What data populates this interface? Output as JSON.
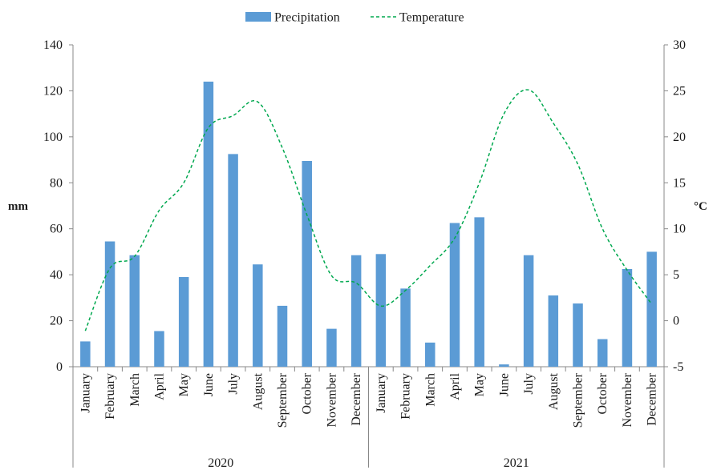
{
  "chart_data": {
    "type": "bar",
    "legend": {
      "placement": "top-center",
      "items": [
        {
          "label": "Precipitation",
          "marker": "bar"
        },
        {
          "label": "Temperature",
          "marker": "dashed-line"
        }
      ]
    },
    "y_left_label": "mm",
    "y_right_label": "°C",
    "y_left_range": [
      0,
      140
    ],
    "y_left_ticks": [
      "0",
      "20",
      "40",
      "60",
      "80",
      "100",
      "120",
      "140"
    ],
    "y_right_range": [
      -5,
      30
    ],
    "y_right_ticks": [
      "-5",
      "0",
      "5",
      "10",
      "15",
      "20",
      "25",
      "30"
    ],
    "grid": false,
    "groups": [
      {
        "label": "2020",
        "categories": [
          "January",
          "February",
          "March",
          "April",
          "May",
          "June",
          "July",
          "August",
          "September",
          "October",
          "November",
          "December"
        ]
      },
      {
        "label": "2021",
        "categories": [
          "January",
          "February",
          "March",
          "April",
          "May",
          "June",
          "July",
          "August",
          "September",
          "October",
          "November",
          "December"
        ]
      }
    ],
    "series": [
      {
        "name": "Precipitation",
        "type": "bar",
        "axis": "left",
        "values": [
          11,
          54.5,
          48.5,
          15.5,
          39,
          124,
          92.5,
          44.5,
          26.5,
          89.5,
          16.5,
          48.5,
          49,
          34,
          10.5,
          62.5,
          65,
          1,
          48.5,
          31,
          27.5,
          12,
          42.5,
          50
        ]
      },
      {
        "name": "Temperature",
        "type": "line",
        "axis": "right",
        "values": [
          -1.1,
          5.7,
          7.0,
          12.0,
          15.0,
          21.0,
          22.3,
          23.8,
          18.8,
          11.5,
          4.9,
          4.1,
          1.6,
          3.3,
          6.0,
          9.0,
          15.0,
          22.5,
          25.1,
          21.5,
          17.0,
          10.0,
          5.5,
          1.8
        ]
      }
    ],
    "colors": {
      "bar": "#5b9bd5",
      "line": "#00a84f",
      "axis": "#888888",
      "text": "#1a1a1a"
    }
  }
}
